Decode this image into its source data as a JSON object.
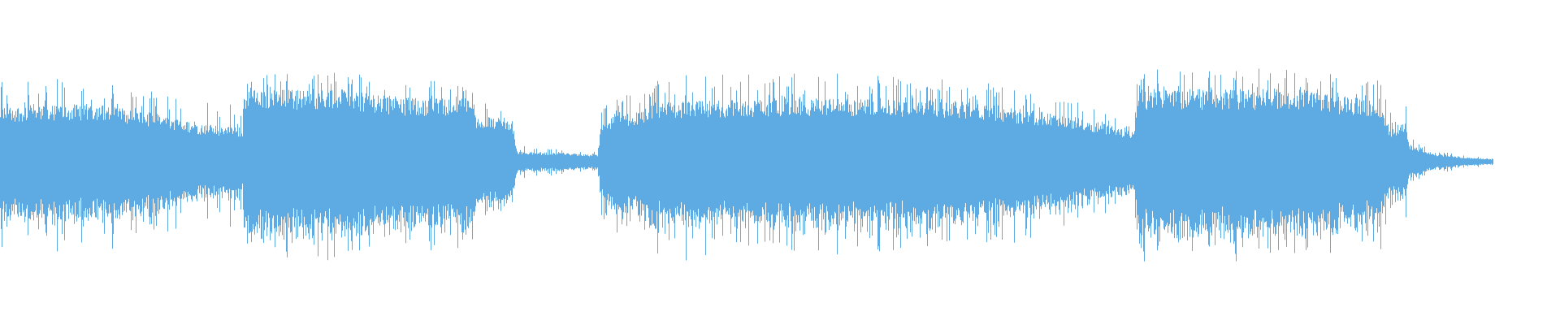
{
  "waveform": {
    "type": "audio-waveform",
    "color": "#5dabe2",
    "background": "#ffffff"
  }
}
